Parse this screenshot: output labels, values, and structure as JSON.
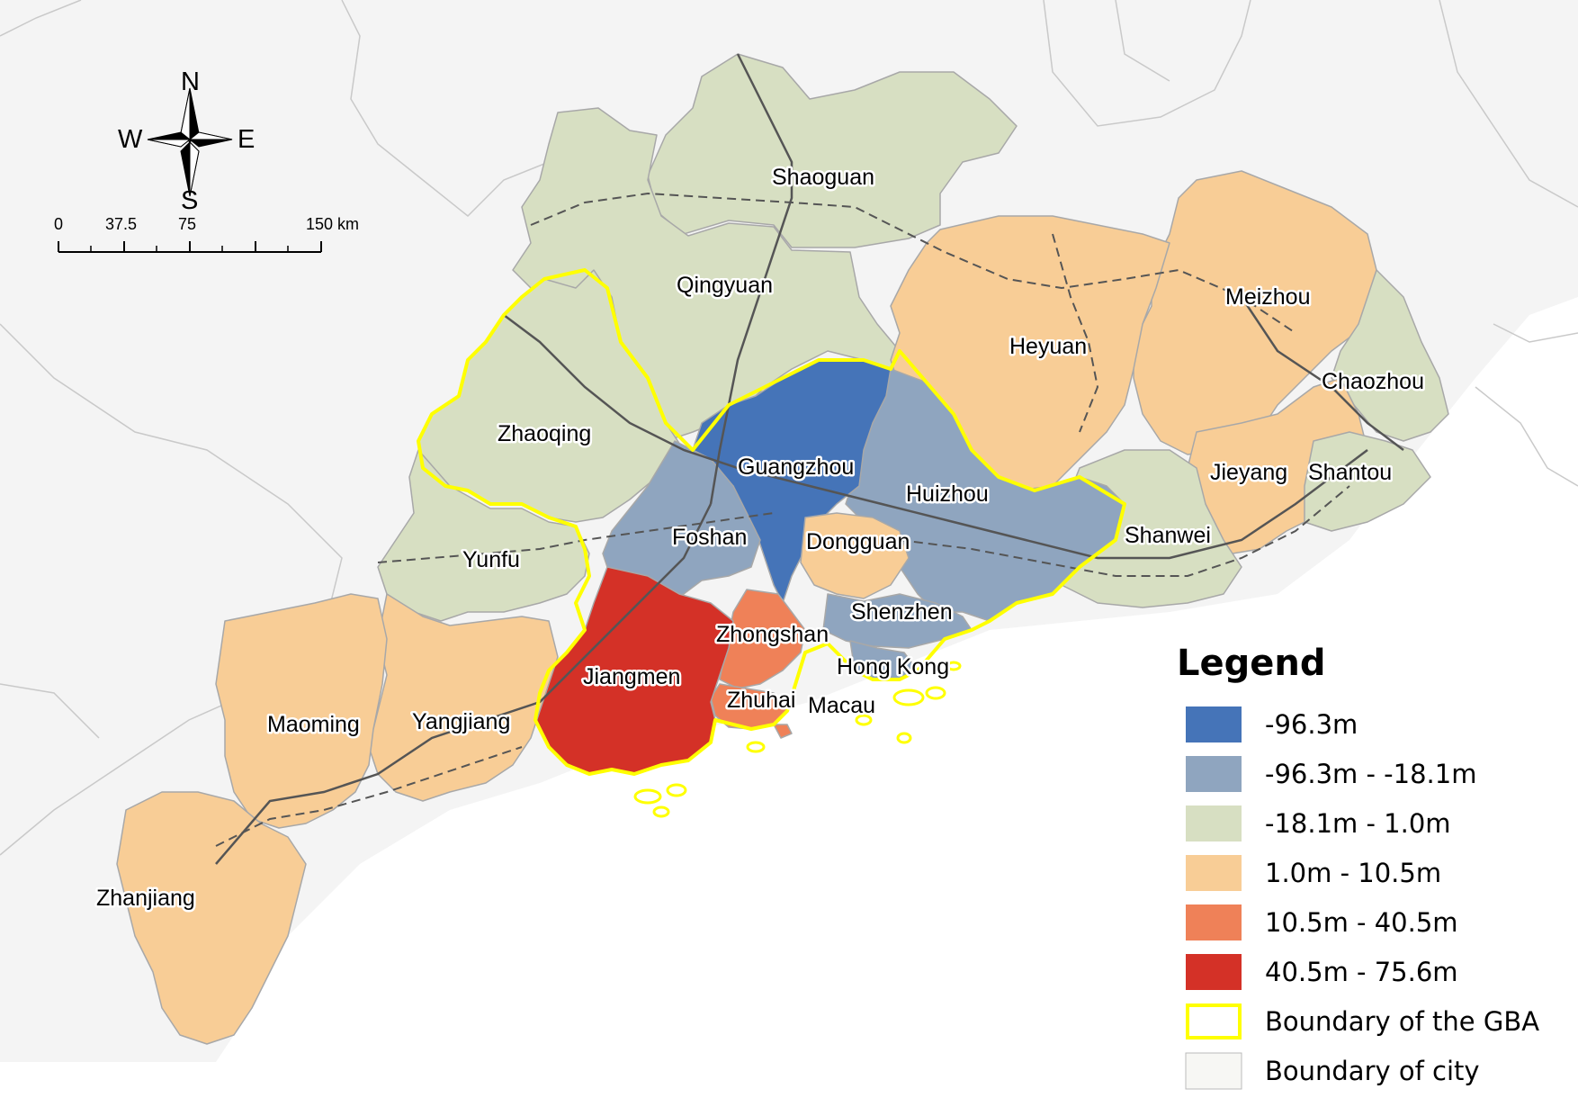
{
  "legend": {
    "title": "Legend",
    "items": [
      {
        "label": "-96.3m",
        "color": "#4574b8"
      },
      {
        "label": "-96.3m - -18.1m",
        "color": "#8fa5bf"
      },
      {
        "label": "-18.1m - 1.0m",
        "color": "#d7dfc2"
      },
      {
        "label": "1.0m - 10.5m",
        "color": "#f8cd96"
      },
      {
        "label": "10.5m - 40.5m",
        "color": "#ef8158"
      },
      {
        "label": "40.5m - 75.6m",
        "color": "#d43127"
      },
      {
        "label": "Boundary of the GBA",
        "color": "#ffff00"
      },
      {
        "label": "Boundary of city",
        "color": "#f7f7f4"
      }
    ]
  },
  "compass": {
    "n": "N",
    "s": "S",
    "e": "E",
    "w": "W"
  },
  "scale_bar": {
    "labels": [
      "0",
      "37.5",
      "75",
      "150 km"
    ]
  },
  "cities": {
    "shaoguan": "Shaoguan",
    "qingyuan": "Qingyuan",
    "meizhou": "Meizhou",
    "heyuan": "Heyuan",
    "chaozhou": "Chaozhou",
    "zhaoqing": "Zhaoqing",
    "guangzhou": "Guangzhou",
    "huizhou": "Huizhou",
    "jieyang": "Jieyang",
    "shantou": "Shantou",
    "foshan": "Foshan",
    "dongguan": "Dongguan",
    "shanwei": "Shanwei",
    "yunfu": "Yunfu",
    "shenzhen": "Shenzhen",
    "zhongshan": "Zhongshan",
    "hongkong": "Hong Kong",
    "jiangmen": "Jiangmen",
    "zhuhai": "Zhuhai",
    "macau": "Macau",
    "maoming": "Maoming",
    "yangjiang": "Yangjiang",
    "zhanjiang": "Zhanjiang"
  },
  "map_colors": {
    "background": "#f4f4f4",
    "neighbor_border": "#c9c9c9",
    "city_border": "#a8a8a8",
    "rail": "#555555",
    "highway": "#555555",
    "gba_boundary": "#ffff00"
  }
}
